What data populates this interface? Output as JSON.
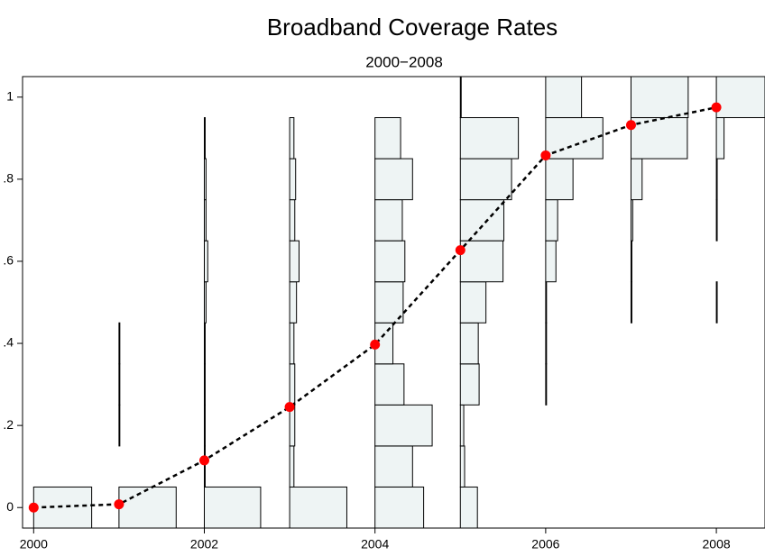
{
  "chart_data": {
    "type": "line",
    "title": "Broadband Coverage Rates",
    "subtitle": "2000−2008",
    "x": [
      2000,
      2001,
      2002,
      2003,
      2004,
      2005,
      2006,
      2007,
      2008
    ],
    "values": [
      0,
      0.008,
      0.115,
      0.245,
      0.397,
      0.627,
      0.858,
      0.932,
      0.975
    ],
    "color": "#ff0000",
    "line_color": "#000000",
    "histograms": {
      "color": "#eef4f4",
      "bins": [
        -0.05,
        0.05,
        0.15,
        0.25,
        0.35,
        0.45,
        0.55,
        0.65,
        0.75,
        0.85,
        0.95,
        1.05
      ],
      "values": [
        [
          0.68,
          0,
          0,
          0,
          0,
          0,
          0,
          0,
          0,
          0,
          0
        ],
        [
          0.67,
          0,
          0.01,
          0.01,
          0.01,
          0,
          0,
          0,
          0,
          0,
          0
        ],
        [
          0.66,
          0.01,
          0.01,
          0.01,
          0.01,
          0.02,
          0.04,
          0.02,
          0.02,
          0.01,
          0
        ],
        [
          0.67,
          0.05,
          0.06,
          0.06,
          0.05,
          0.08,
          0.11,
          0.06,
          0.07,
          0.05,
          0
        ],
        [
          0.57,
          0.44,
          0.67,
          0.34,
          0.21,
          0.33,
          0.35,
          0.32,
          0.44,
          0.3,
          0
        ],
        [
          0.2,
          0.05,
          0.04,
          0.22,
          0.21,
          0.3,
          0.5,
          0.51,
          0.6,
          0.68,
          0.01
        ],
        [
          0,
          0,
          0,
          0.01,
          0.01,
          0.01,
          0.12,
          0.14,
          0.32,
          0.67,
          0.42
        ],
        [
          0,
          0,
          0,
          0,
          0,
          0.01,
          0.01,
          0.02,
          0.13,
          0.66,
          0.67
        ],
        [
          0,
          0,
          0,
          0,
          0,
          0.01,
          0,
          0.01,
          0.01,
          0.09,
          0.9
        ]
      ]
    },
    "xlim": [
      1999.87,
      2008.57
    ],
    "ylim": [
      -0.05,
      1.05
    ],
    "xticks": [
      2000,
      2002,
      2004,
      2006,
      2008
    ],
    "yticks": [
      0,
      {
        "value": 0.2,
        "label": ".2"
      },
      {
        "value": 0.4,
        "label": ".4"
      },
      {
        "value": 0.6,
        "label": ".6"
      },
      {
        "value": 0.8,
        "label": ".8"
      },
      1
    ]
  }
}
